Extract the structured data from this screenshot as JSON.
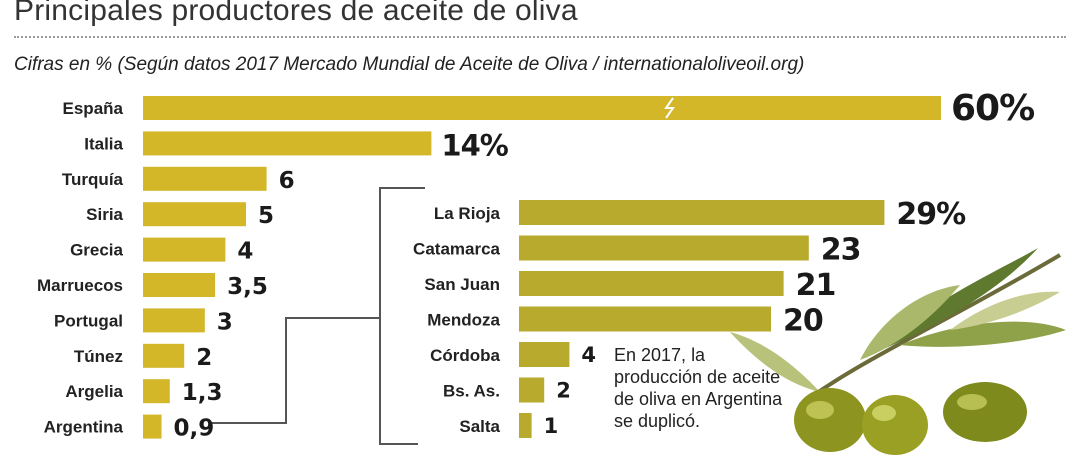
{
  "title": "Principales productores de aceite de oliva",
  "subtitle": "Cifras en % (Según datos 2017 Mercado Mundial de Aceite de Oliva / internationaloliveoil.org)",
  "note": "En 2017, la producción de aceite de oliva en Argentina se duplicó.",
  "colors": {
    "world_bar": "#d4b629",
    "argentina_bar": "#b8aa2c",
    "connector": "#555555"
  },
  "chart_data": [
    {
      "type": "bar",
      "orientation": "horizontal",
      "axis_break": "España",
      "categories": [
        "España",
        "Italia",
        "Turquía",
        "Siria",
        "Grecia",
        "Marruecos",
        "Portugal",
        "Túnez",
        "Argelia",
        "Argentina"
      ],
      "values": [
        60,
        14,
        6,
        5,
        4,
        3.5,
        3,
        2,
        1.3,
        0.9
      ],
      "value_labels": [
        "60%",
        "14%",
        "6",
        "5",
        "4",
        "3,5",
        "3",
        "2",
        "1,3",
        "0,9"
      ]
    },
    {
      "type": "bar",
      "orientation": "horizontal",
      "categories": [
        "La Rioja",
        "Catamarca",
        "San Juan",
        "Mendoza",
        "Córdoba",
        "Bs. As.",
        "Salta"
      ],
      "values": [
        29,
        23,
        21,
        20,
        4,
        2,
        1
      ],
      "value_labels": [
        "29%",
        "23",
        "21",
        "20",
        "4",
        "2",
        "1"
      ]
    }
  ]
}
